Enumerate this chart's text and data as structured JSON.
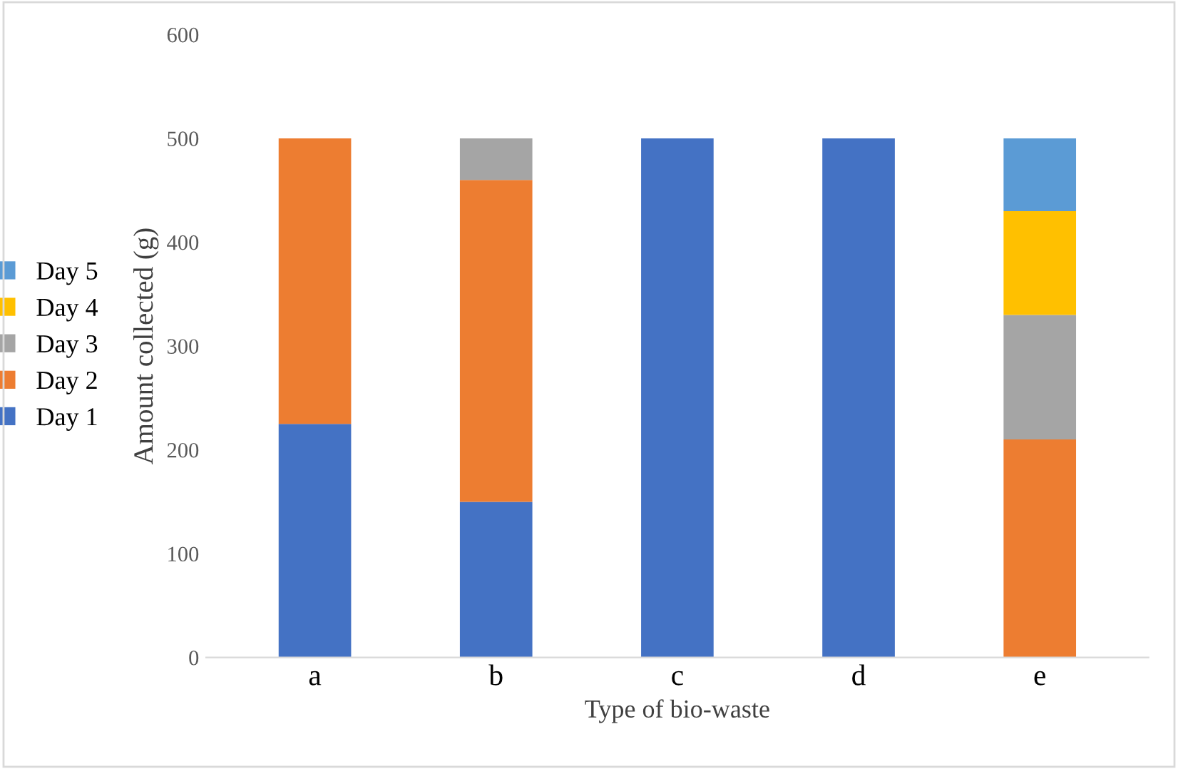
{
  "chart_data": {
    "type": "bar",
    "stacked": true,
    "xlabel": "Type of bio-waste",
    "ylabel": "Amount collected (g)",
    "categories": [
      "a",
      "b",
      "c",
      "d",
      "e"
    ],
    "series": [
      {
        "name": "Day 1",
        "color": "#4472c4",
        "values": [
          225,
          150,
          500,
          500,
          0
        ]
      },
      {
        "name": "Day 2",
        "color": "#ed7d31",
        "values": [
          275,
          310,
          0,
          0,
          210
        ]
      },
      {
        "name": "Day 3",
        "color": "#a5a5a5",
        "values": [
          0,
          40,
          0,
          0,
          120
        ]
      },
      {
        "name": "Day 4",
        "color": "#ffc000",
        "values": [
          0,
          0,
          0,
          0,
          100
        ]
      },
      {
        "name": "Day 5",
        "color": "#5b9bd5",
        "values": [
          0,
          0,
          0,
          0,
          70
        ]
      }
    ],
    "ylim": [
      0,
      600
    ],
    "yticks": [
      0,
      100,
      200,
      300,
      400,
      500,
      600
    ],
    "grid": false,
    "legend": "left"
  }
}
